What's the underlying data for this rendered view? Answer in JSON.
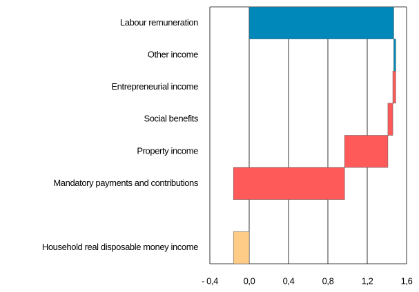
{
  "chart_data": {
    "type": "waterfall",
    "categories": [
      "Labour remuneration",
      "Other income",
      "Entrepreneurial income",
      "Social benefits",
      "Property income",
      "Mandatory payments and contributions",
      null,
      "Household real disposable money income"
    ],
    "values": [
      1.47,
      0.02,
      -0.03,
      -0.05,
      -0.44,
      -1.13,
      null,
      -0.16
    ],
    "colors": [
      "#0088bb",
      "#0088bb",
      "#ff5a5a",
      "#ff5a5a",
      "#ff5a5a",
      "#ff5a5a",
      null,
      "#ffcc88"
    ],
    "xlim": [
      -0.4,
      1.6
    ],
    "xticks": [
      {
        "value": -0.4,
        "label": "- 0,4"
      },
      {
        "value": 0,
        "label": "0,0"
      },
      {
        "value": 0.4,
        "label": "0,4"
      },
      {
        "value": 0.8,
        "label": "0,8"
      },
      {
        "value": 1.2,
        "label": "1,2"
      },
      {
        "value": 1.6,
        "label": "1,6"
      }
    ],
    "grid": true
  }
}
